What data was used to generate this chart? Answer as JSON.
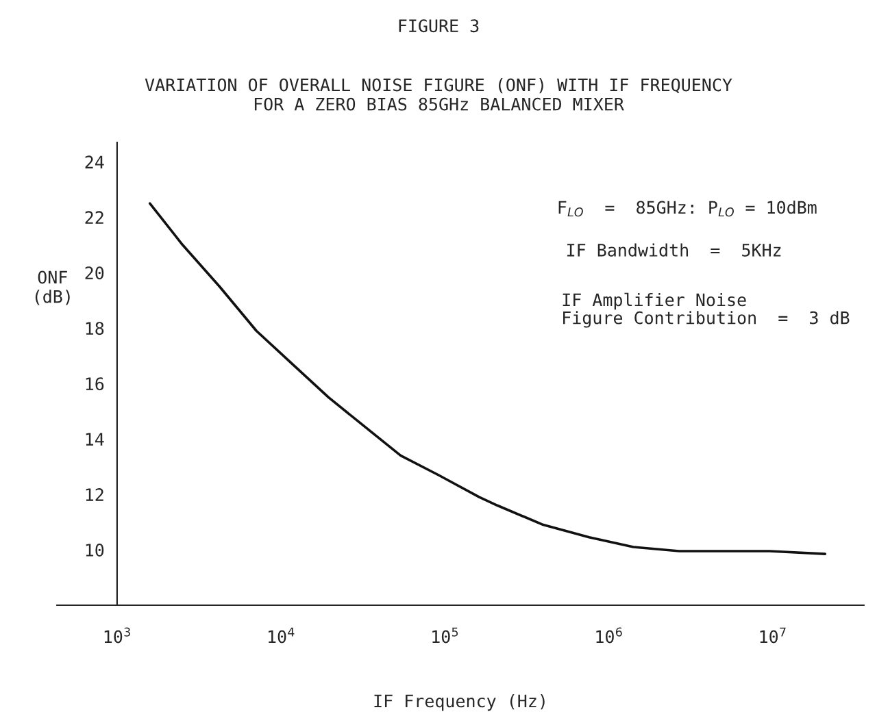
{
  "chart_data": {
    "type": "line",
    "title": "FIGURE 3",
    "subtitle": "VARIATION OF OVERALL NOISE FIGURE (ONF) WITH IF FREQUENCY\nFOR A ZERO BIAS 85GHz BALANCED MIXER",
    "xlabel": "IF Frequency (Hz)",
    "ylabel": "ONF\n(dB)",
    "log": "x",
    "x": [
      1585,
      2512,
      4217,
      7079,
      11749,
      19498,
      33113,
      53703,
      91201,
      162181,
      208930,
      398107,
      758578,
      1412538,
      2691535,
      5128614,
      9549926,
      20892961
    ],
    "series": [
      {
        "color": "#111111",
        "values": [
          22.5,
          21.0,
          19.5,
          17.9,
          16.7,
          15.5,
          14.4,
          13.4,
          12.7,
          11.9,
          11.6,
          10.9,
          10.45,
          10.1,
          9.95,
          9.95,
          9.95,
          9.85
        ]
      }
    ],
    "xlim": [
      430,
      36000000
    ],
    "ylim": [
      8,
      24.7
    ],
    "xticks": [
      {
        "value": 1000,
        "label": "10$^{3}$"
      },
      {
        "value": 10000,
        "label": "10$^{4}$"
      },
      {
        "value": 100000,
        "label": "10$^{5}$"
      },
      {
        "value": 1000000,
        "label": "10$^{6}$"
      },
      {
        "value": 10000000,
        "label": "10$^{7}$"
      }
    ],
    "yticks": [
      10,
      12,
      14,
      16,
      18,
      20,
      22,
      24
    ],
    "grid": false,
    "marker": "none",
    "line_style": "solid",
    "annotations": [
      "F$_{LO}$  =  85GHz: P$_{LO}$ = 10dBm",
      "IF Bandwidth  =  5KHz",
      "IF Amplifier Noise\nFigure Contribution  =  3 dB"
    ]
  }
}
